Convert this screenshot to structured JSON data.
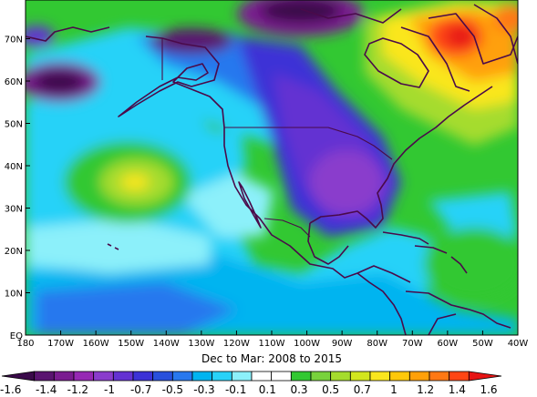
{
  "caption": "Dec to Mar: 2008 to 2015",
  "axes": {
    "x_ticks": [
      "180",
      "170W",
      "160W",
      "150W",
      "140W",
      "130W",
      "120W",
      "110W",
      "100W",
      "90W",
      "80W",
      "70W",
      "60W",
      "50W",
      "40W"
    ],
    "y_ticks": [
      "70N",
      "60N",
      "50N",
      "40N",
      "30N",
      "20N",
      "10N",
      "EQ"
    ]
  },
  "colorbar": {
    "labels": [
      "-1.6",
      "-1.4",
      "-1.2",
      "-1",
      "-0.7",
      "-0.5",
      "-0.3",
      "-0.1",
      "0.1",
      "0.3",
      "0.5",
      "0.7",
      "1",
      "1.2",
      "1.4",
      "1.6"
    ],
    "colors": [
      "#3a0a4a",
      "#5a1470",
      "#7a1c90",
      "#9628b4",
      "#8a3ccc",
      "#6432d2",
      "#3c32d6",
      "#2850dc",
      "#2878ee",
      "#00b4f0",
      "#28d2f8",
      "#8cf0fa",
      "#ffffff",
      "#ffffff",
      "#32c832",
      "#78d23c",
      "#a5dc2d",
      "#d2e61e",
      "#fae61e",
      "#ffc80a",
      "#ffa00a",
      "#ff7814",
      "#ff4614",
      "#e61414"
    ]
  }
}
